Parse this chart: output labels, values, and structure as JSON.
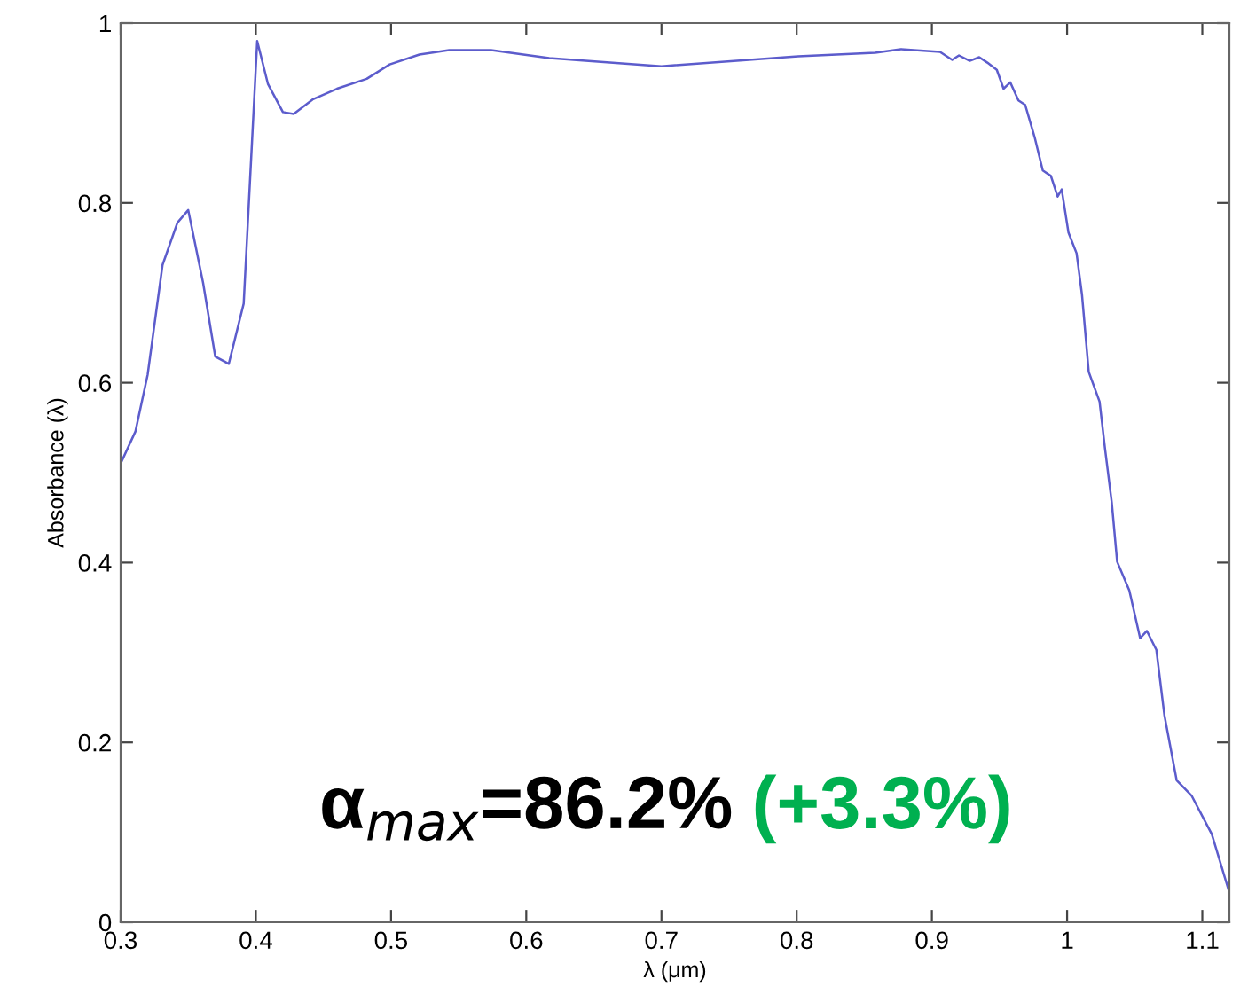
{
  "chart_data": {
    "type": "line",
    "xlabel": "λ (μm)",
    "ylabel": "Absorbance (λ)",
    "xlim": [
      0.3,
      1.12
    ],
    "ylim": [
      0,
      1
    ],
    "xticks": [
      0.3,
      0.4,
      0.5,
      0.6,
      0.7,
      0.8,
      0.9,
      1,
      1.1
    ],
    "yticks": [
      0,
      0.2,
      0.4,
      0.6,
      0.8,
      1
    ],
    "grid": false,
    "legend": false,
    "annotations": [
      "α$_{max}$=86.2%",
      "(+3.3%)"
    ],
    "series": [
      {
        "color": "#5c5ccc",
        "x": [
          0.3,
          0.311,
          0.32,
          0.331,
          0.342,
          0.35,
          0.361,
          0.37,
          0.38,
          0.391,
          0.401,
          0.409,
          0.42,
          0.428,
          0.442,
          0.46,
          0.482,
          0.499,
          0.521,
          0.543,
          0.574,
          0.617,
          0.7,
          0.801,
          0.858,
          0.877,
          0.906,
          0.915,
          0.92,
          0.928,
          0.935,
          0.941,
          0.948,
          0.953,
          0.958,
          0.964,
          0.969,
          0.976,
          0.982,
          0.988,
          0.993,
          0.996,
          1.001,
          1.007,
          1.011,
          1.016,
          1.024,
          1.028,
          1.033,
          1.037,
          1.046,
          1.054,
          1.059,
          1.066,
          1.072,
          1.081,
          1.092,
          1.107,
          1.12
        ],
        "values": [
          0.51,
          0.546,
          0.609,
          0.731,
          0.778,
          0.792,
          0.711,
          0.629,
          0.621,
          0.688,
          0.98,
          0.932,
          0.901,
          0.899,
          0.915,
          0.927,
          0.938,
          0.954,
          0.965,
          0.97,
          0.97,
          0.961,
          0.952,
          0.963,
          0.967,
          0.971,
          0.968,
          0.959,
          0.964,
          0.958,
          0.962,
          0.956,
          0.948,
          0.927,
          0.934,
          0.914,
          0.909,
          0.873,
          0.836,
          0.83,
          0.807,
          0.815,
          0.767,
          0.744,
          0.698,
          0.612,
          0.579,
          0.527,
          0.467,
          0.401,
          0.369,
          0.316,
          0.324,
          0.303,
          0.23,
          0.158,
          0.141,
          0.098,
          0.033
        ]
      }
    ]
  }
}
